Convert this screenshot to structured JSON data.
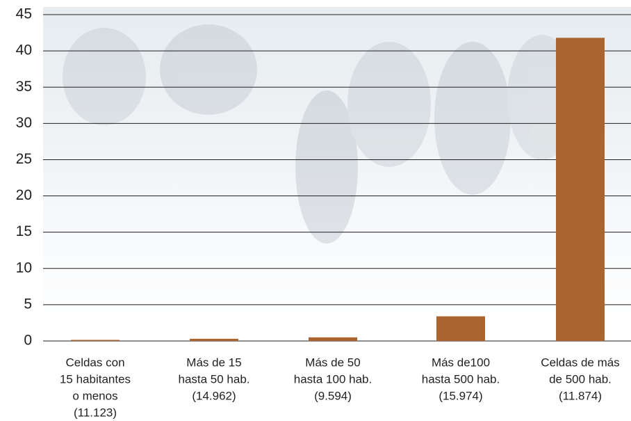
{
  "chart_data": {
    "type": "bar",
    "categories": [
      [
        "Celdas con",
        "15 habitantes",
        "o menos",
        "(11.123)"
      ],
      [
        "Más de 15",
        "hasta 50 hab.",
        "(14.962)"
      ],
      [
        "Más de 50",
        "hasta 100 hab.",
        "(9.594)"
      ],
      [
        "Más de100",
        "hasta 500 hab.",
        "(15.974)"
      ],
      [
        "Celdas de más",
        "de 500 hab.",
        "(11.874)"
      ]
    ],
    "values": [
      0.15,
      0.3,
      0.5,
      3.4,
      41.8
    ],
    "color": "#a8652f",
    "ylim": [
      0,
      45
    ],
    "yticks": [
      0,
      5,
      10,
      15,
      20,
      25,
      30,
      35,
      40,
      45
    ],
    "grid": true
  }
}
